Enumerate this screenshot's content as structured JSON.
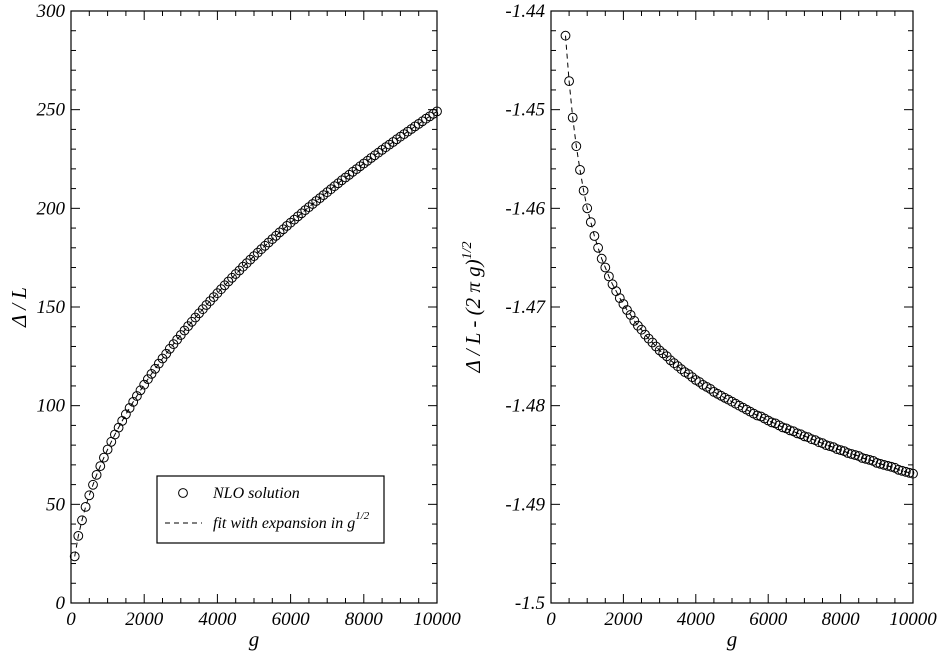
{
  "chart_data": [
    {
      "type": "scatter",
      "xlabel": "g",
      "ylabel": "Δ / L",
      "xlim": [
        0,
        10000
      ],
      "ylim": [
        0,
        300
      ],
      "x_ticks": [
        "0",
        "2000",
        "4000",
        "6000",
        "8000",
        "10000"
      ],
      "y_ticks": [
        "0",
        "50",
        "100",
        "150",
        "200",
        "250",
        "300"
      ],
      "grid": false,
      "legend": {
        "placement": "bottom-right",
        "entries": [
          {
            "marker": "circle",
            "label": "NLO solution"
          },
          {
            "marker": "dashed-line",
            "label": "fit with expansion in g",
            "superscript": "1/2"
          }
        ]
      },
      "series": [
        {
          "marker": "circle",
          "x": [
            100,
            200,
            300,
            400,
            500,
            600,
            700,
            800,
            900,
            1000,
            1100,
            1200,
            1300,
            1400,
            1500,
            1600,
            1700,
            1800,
            1900,
            2000,
            2100,
            2200,
            2300,
            2400,
            2500,
            2600,
            2700,
            2800,
            2900,
            3000,
            3100,
            3200,
            3300,
            3400,
            3500,
            3600,
            3700,
            3800,
            3900,
            4000,
            4100,
            4200,
            4300,
            4400,
            4500,
            4600,
            4700,
            4800,
            4900,
            5000,
            5100,
            5200,
            5300,
            5400,
            5500,
            5600,
            5700,
            5800,
            5900,
            6000,
            6100,
            6200,
            6300,
            6400,
            6500,
            6600,
            6700,
            6800,
            6900,
            7000,
            7100,
            7200,
            7300,
            7400,
            7500,
            7600,
            7700,
            7800,
            7900,
            8000,
            8100,
            8200,
            8300,
            8400,
            8500,
            8600,
            8700,
            8800,
            8900,
            9000,
            9100,
            9200,
            9300,
            9400,
            9500,
            9600,
            9700,
            9800,
            9900,
            10000
          ],
          "y": [
            23.6,
            34.0,
            41.9,
            48.7,
            54.6,
            59.9,
            64.9,
            69.4,
            73.7,
            77.8,
            81.7,
            85.4,
            88.9,
            92.3,
            95.6,
            98.8,
            101.9,
            104.9,
            107.8,
            110.6,
            113.4,
            116.1,
            118.7,
            121.3,
            123.9,
            126.3,
            128.8,
            131.2,
            133.5,
            135.8,
            138.1,
            140.3,
            142.5,
            144.7,
            146.8,
            148.9,
            151.0,
            153.0,
            155.0,
            157.0,
            159.0,
            161.0,
            162.9,
            164.8,
            166.7,
            168.5,
            170.4,
            172.2,
            174.0,
            175.8,
            177.5,
            179.3,
            181.0,
            182.7,
            184.4,
            186.1,
            187.8,
            189.4,
            191.1,
            192.7,
            194.3,
            195.9,
            197.5,
            199.1,
            200.6,
            202.2,
            203.7,
            205.2,
            206.7,
            208.2,
            209.7,
            211.2,
            212.7,
            214.2,
            215.6,
            217.0,
            218.5,
            219.9,
            221.3,
            222.7,
            224.1,
            225.5,
            226.9,
            228.2,
            229.6,
            231.0,
            232.3,
            233.6,
            235.0,
            236.3,
            237.6,
            238.9,
            240.2,
            241.5,
            242.8,
            244.1,
            245.4,
            246.6,
            247.9,
            249.1
          ]
        },
        {
          "marker": "dashed-line",
          "x": [
            100,
            200,
            300,
            400,
            500,
            600,
            700,
            800,
            900,
            1000,
            1100,
            1200,
            1300,
            1400,
            1500,
            1600,
            1700,
            1800,
            1900,
            2000,
            2100,
            2200,
            2300,
            2400,
            2500,
            2600,
            2700,
            2800,
            2900,
            3000,
            3100,
            3200,
            3300,
            3400,
            3500,
            3600,
            3700,
            3800,
            3900,
            4000,
            4100,
            4200,
            4300,
            4400,
            4500,
            4600,
            4700,
            4800,
            4900,
            5000,
            5100,
            5200,
            5300,
            5400,
            5500,
            5600,
            5700,
            5800,
            5900,
            6000,
            6100,
            6200,
            6300,
            6400,
            6500,
            6600,
            6700,
            6800,
            6900,
            7000,
            7100,
            7200,
            7300,
            7400,
            7500,
            7600,
            7700,
            7800,
            7900,
            8000,
            8100,
            8200,
            8300,
            8400,
            8500,
            8600,
            8700,
            8800,
            8900,
            9000,
            9100,
            9200,
            9300,
            9400,
            9500,
            9600,
            9700,
            9800,
            9900,
            10000
          ],
          "y": [
            23.6,
            34.0,
            41.9,
            48.7,
            54.6,
            59.9,
            64.9,
            69.4,
            73.7,
            77.8,
            81.7,
            85.4,
            88.9,
            92.3,
            95.6,
            98.8,
            101.9,
            104.9,
            107.8,
            110.6,
            113.4,
            116.1,
            118.7,
            121.3,
            123.9,
            126.3,
            128.8,
            131.2,
            133.5,
            135.8,
            138.1,
            140.3,
            142.5,
            144.7,
            146.8,
            148.9,
            151.0,
            153.0,
            155.0,
            157.0,
            159.0,
            161.0,
            162.9,
            164.8,
            166.7,
            168.5,
            170.4,
            172.2,
            174.0,
            175.8,
            177.5,
            179.3,
            181.0,
            182.7,
            184.4,
            186.1,
            187.8,
            189.4,
            191.1,
            192.7,
            194.3,
            195.9,
            197.5,
            199.1,
            200.6,
            202.2,
            203.7,
            205.2,
            206.7,
            208.2,
            209.7,
            211.2,
            212.7,
            214.2,
            215.6,
            217.0,
            218.5,
            219.9,
            221.3,
            222.7,
            224.1,
            225.5,
            226.9,
            228.2,
            229.6,
            231.0,
            232.3,
            233.6,
            235.0,
            236.3,
            237.6,
            238.9,
            240.2,
            241.5,
            242.8,
            244.1,
            245.4,
            246.6,
            247.9,
            249.1
          ]
        }
      ]
    },
    {
      "type": "scatter",
      "xlabel": "g",
      "ylabel": "Δ / L - (2 π g)",
      "ylabel_superscript": "1/2",
      "xlim": [
        0,
        10000
      ],
      "ylim": [
        -1.5,
        -1.44
      ],
      "x_ticks": [
        "0",
        "2000",
        "4000",
        "6000",
        "8000",
        "10000"
      ],
      "y_ticks": [
        "-1.5",
        "-1.49",
        "-1.48",
        "-1.47",
        "-1.46",
        "-1.45",
        "-1.44"
      ],
      "grid": false,
      "series": [
        {
          "marker": "circle",
          "x": [
            400,
            500,
            600,
            700,
            800,
            900,
            1000,
            1100,
            1200,
            1300,
            1400,
            1500,
            1600,
            1700,
            1800,
            1900,
            2000,
            2100,
            2200,
            2300,
            2400,
            2500,
            2600,
            2700,
            2800,
            2900,
            3000,
            3100,
            3200,
            3300,
            3400,
            3500,
            3600,
            3700,
            3800,
            3900,
            4000,
            4100,
            4200,
            4300,
            4400,
            4500,
            4600,
            4700,
            4800,
            4900,
            5000,
            5100,
            5200,
            5300,
            5400,
            5500,
            5600,
            5700,
            5800,
            5900,
            6000,
            6100,
            6200,
            6300,
            6400,
            6500,
            6600,
            6700,
            6800,
            6900,
            7000,
            7100,
            7200,
            7300,
            7400,
            7500,
            7600,
            7700,
            7800,
            7900,
            8000,
            8100,
            8200,
            8300,
            8400,
            8500,
            8600,
            8700,
            8800,
            8900,
            9000,
            9100,
            9200,
            9300,
            9400,
            9500,
            9600,
            9700,
            9800,
            9900,
            10000
          ],
          "y": [
            -1.4425,
            -1.4471,
            -1.4508,
            -1.4537,
            -1.4561,
            -1.4582,
            -1.46,
            -1.4614,
            -1.4628,
            -1.464,
            -1.4651,
            -1.466,
            -1.4669,
            -1.4677,
            -1.4684,
            -1.4691,
            -1.4697,
            -1.4703,
            -1.4708,
            -1.4714,
            -1.4719,
            -1.4723,
            -1.4728,
            -1.4732,
            -1.4736,
            -1.474,
            -1.4744,
            -1.4747,
            -1.475,
            -1.4754,
            -1.4757,
            -1.476,
            -1.4763,
            -1.4766,
            -1.4768,
            -1.4771,
            -1.4774,
            -1.4776,
            -1.4779,
            -1.4781,
            -1.4783,
            -1.4786,
            -1.4788,
            -1.479,
            -1.4792,
            -1.4794,
            -1.4796,
            -1.4798,
            -1.48,
            -1.4802,
            -1.4804,
            -1.4806,
            -1.4808,
            -1.481,
            -1.4811,
            -1.4813,
            -1.4815,
            -1.4817,
            -1.4818,
            -1.482,
            -1.4822,
            -1.4823,
            -1.4825,
            -1.4826,
            -1.4828,
            -1.4829,
            -1.4831,
            -1.4832,
            -1.4834,
            -1.4835,
            -1.4837,
            -1.4838,
            -1.484,
            -1.4841,
            -1.4842,
            -1.4844,
            -1.4845,
            -1.4846,
            -1.4848,
            -1.4849,
            -1.485,
            -1.4851,
            -1.4853,
            -1.4854,
            -1.4855,
            -1.4856,
            -1.4858,
            -1.4859,
            -1.486,
            -1.4861,
            -1.4862,
            -1.4863,
            -1.4865,
            -1.4866,
            -1.4867,
            -1.4868,
            -1.4869
          ]
        },
        {
          "marker": "dashed-line",
          "x": [
            400,
            500,
            600,
            700,
            800,
            900,
            1000,
            1100,
            1200,
            1300,
            1400,
            1500,
            1600,
            1700,
            1800,
            1900,
            2000,
            2100,
            2200,
            2300,
            2400,
            2500,
            2600,
            2700,
            2800,
            2900,
            3000,
            3100,
            3200,
            3300,
            3400,
            3500,
            3600,
            3700,
            3800,
            3900,
            4000,
            4100,
            4200,
            4300,
            4400,
            4500,
            4600,
            4700,
            4800,
            4900,
            5000,
            5100,
            5200,
            5300,
            5400,
            5500,
            5600,
            5700,
            5800,
            5900,
            6000,
            6100,
            6200,
            6300,
            6400,
            6500,
            6600,
            6700,
            6800,
            6900,
            7000,
            7100,
            7200,
            7300,
            7400,
            7500,
            7600,
            7700,
            7800,
            7900,
            8000,
            8100,
            8200,
            8300,
            8400,
            8500,
            8600,
            8700,
            8800,
            8900,
            9000,
            9100,
            9200,
            9300,
            9400,
            9500,
            9600,
            9700,
            9800,
            9900,
            10000
          ],
          "y": [
            -1.4425,
            -1.4471,
            -1.4508,
            -1.4537,
            -1.4561,
            -1.4582,
            -1.46,
            -1.4614,
            -1.4628,
            -1.464,
            -1.4651,
            -1.466,
            -1.4669,
            -1.4677,
            -1.4684,
            -1.4691,
            -1.4697,
            -1.4703,
            -1.4708,
            -1.4714,
            -1.4719,
            -1.4723,
            -1.4728,
            -1.4732,
            -1.4736,
            -1.474,
            -1.4744,
            -1.4747,
            -1.475,
            -1.4754,
            -1.4757,
            -1.476,
            -1.4763,
            -1.4766,
            -1.4768,
            -1.4771,
            -1.4774,
            -1.4776,
            -1.4779,
            -1.4781,
            -1.4783,
            -1.4786,
            -1.4788,
            -1.479,
            -1.4792,
            -1.4794,
            -1.4796,
            -1.4798,
            -1.48,
            -1.4802,
            -1.4804,
            -1.4806,
            -1.4808,
            -1.481,
            -1.4811,
            -1.4813,
            -1.4815,
            -1.4817,
            -1.4818,
            -1.482,
            -1.4822,
            -1.4823,
            -1.4825,
            -1.4826,
            -1.4828,
            -1.4829,
            -1.4831,
            -1.4832,
            -1.4834,
            -1.4835,
            -1.4837,
            -1.4838,
            -1.484,
            -1.4841,
            -1.4842,
            -1.4844,
            -1.4845,
            -1.4846,
            -1.4848,
            -1.4849,
            -1.485,
            -1.4851,
            -1.4853,
            -1.4854,
            -1.4855,
            -1.4856,
            -1.4858,
            -1.4859,
            -1.486,
            -1.4861,
            -1.4862,
            -1.4863,
            -1.4865,
            -1.4866,
            -1.4867,
            -1.4868,
            -1.4869
          ]
        }
      ]
    }
  ]
}
